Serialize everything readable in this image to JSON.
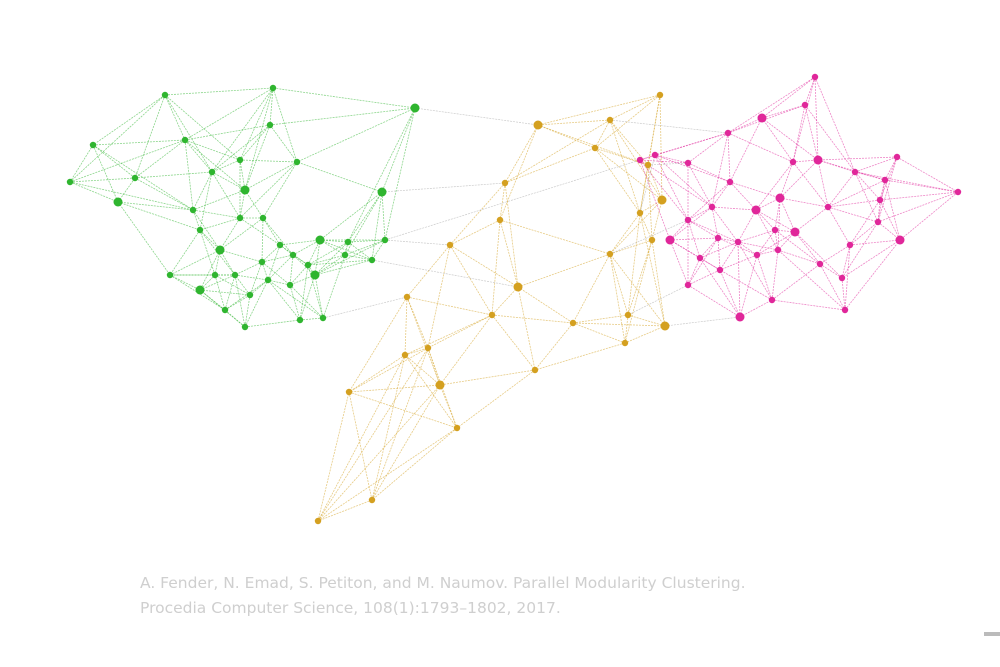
{
  "citation": {
    "line1": "A. Fender, N. Emad, S. Petiton, and M. Naumov. Parallel Modularity Clustering.",
    "line2": "Procedia Computer Science, 108(1):1793–1802, 2017."
  }
}
